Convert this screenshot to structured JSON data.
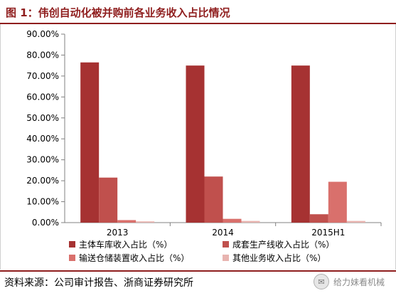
{
  "title": "图 1：伟创自动化被并购前各业务收入占比情况",
  "source": "资料来源：公司审计报告、浙商证券研究所",
  "watermark": {
    "icon": "wechat-icon",
    "text": "给力妹看机械"
  },
  "chart_data": {
    "type": "bar",
    "categories": [
      "2013",
      "2014",
      "2015H1"
    ],
    "series": [
      {
        "name": "主体车库收入占比（%）",
        "color": "#a63232",
        "values": [
          76.5,
          75.0,
          75.0
        ]
      },
      {
        "name": "成套生产线收入占比（%）",
        "color": "#c0504d",
        "values": [
          21.5,
          22.0,
          4.0
        ]
      },
      {
        "name": "输送仓储装置收入占比（%）",
        "color": "#d9706c",
        "values": [
          1.2,
          1.8,
          19.5
        ]
      },
      {
        "name": "其他业务收入占比（%）",
        "color": "#e8b4b0",
        "values": [
          0.6,
          0.8,
          0.8
        ]
      }
    ],
    "ylim": [
      0,
      90
    ],
    "yticks": [
      0,
      10,
      20,
      30,
      40,
      50,
      60,
      70,
      80,
      90
    ],
    "ytick_labels": [
      "0.00%",
      "10.00%",
      "20.00%",
      "30.00%",
      "40.00%",
      "50.00%",
      "60.00%",
      "70.00%",
      "80.00%",
      "90.00%"
    ],
    "grid": false,
    "legend_position": "bottom"
  }
}
